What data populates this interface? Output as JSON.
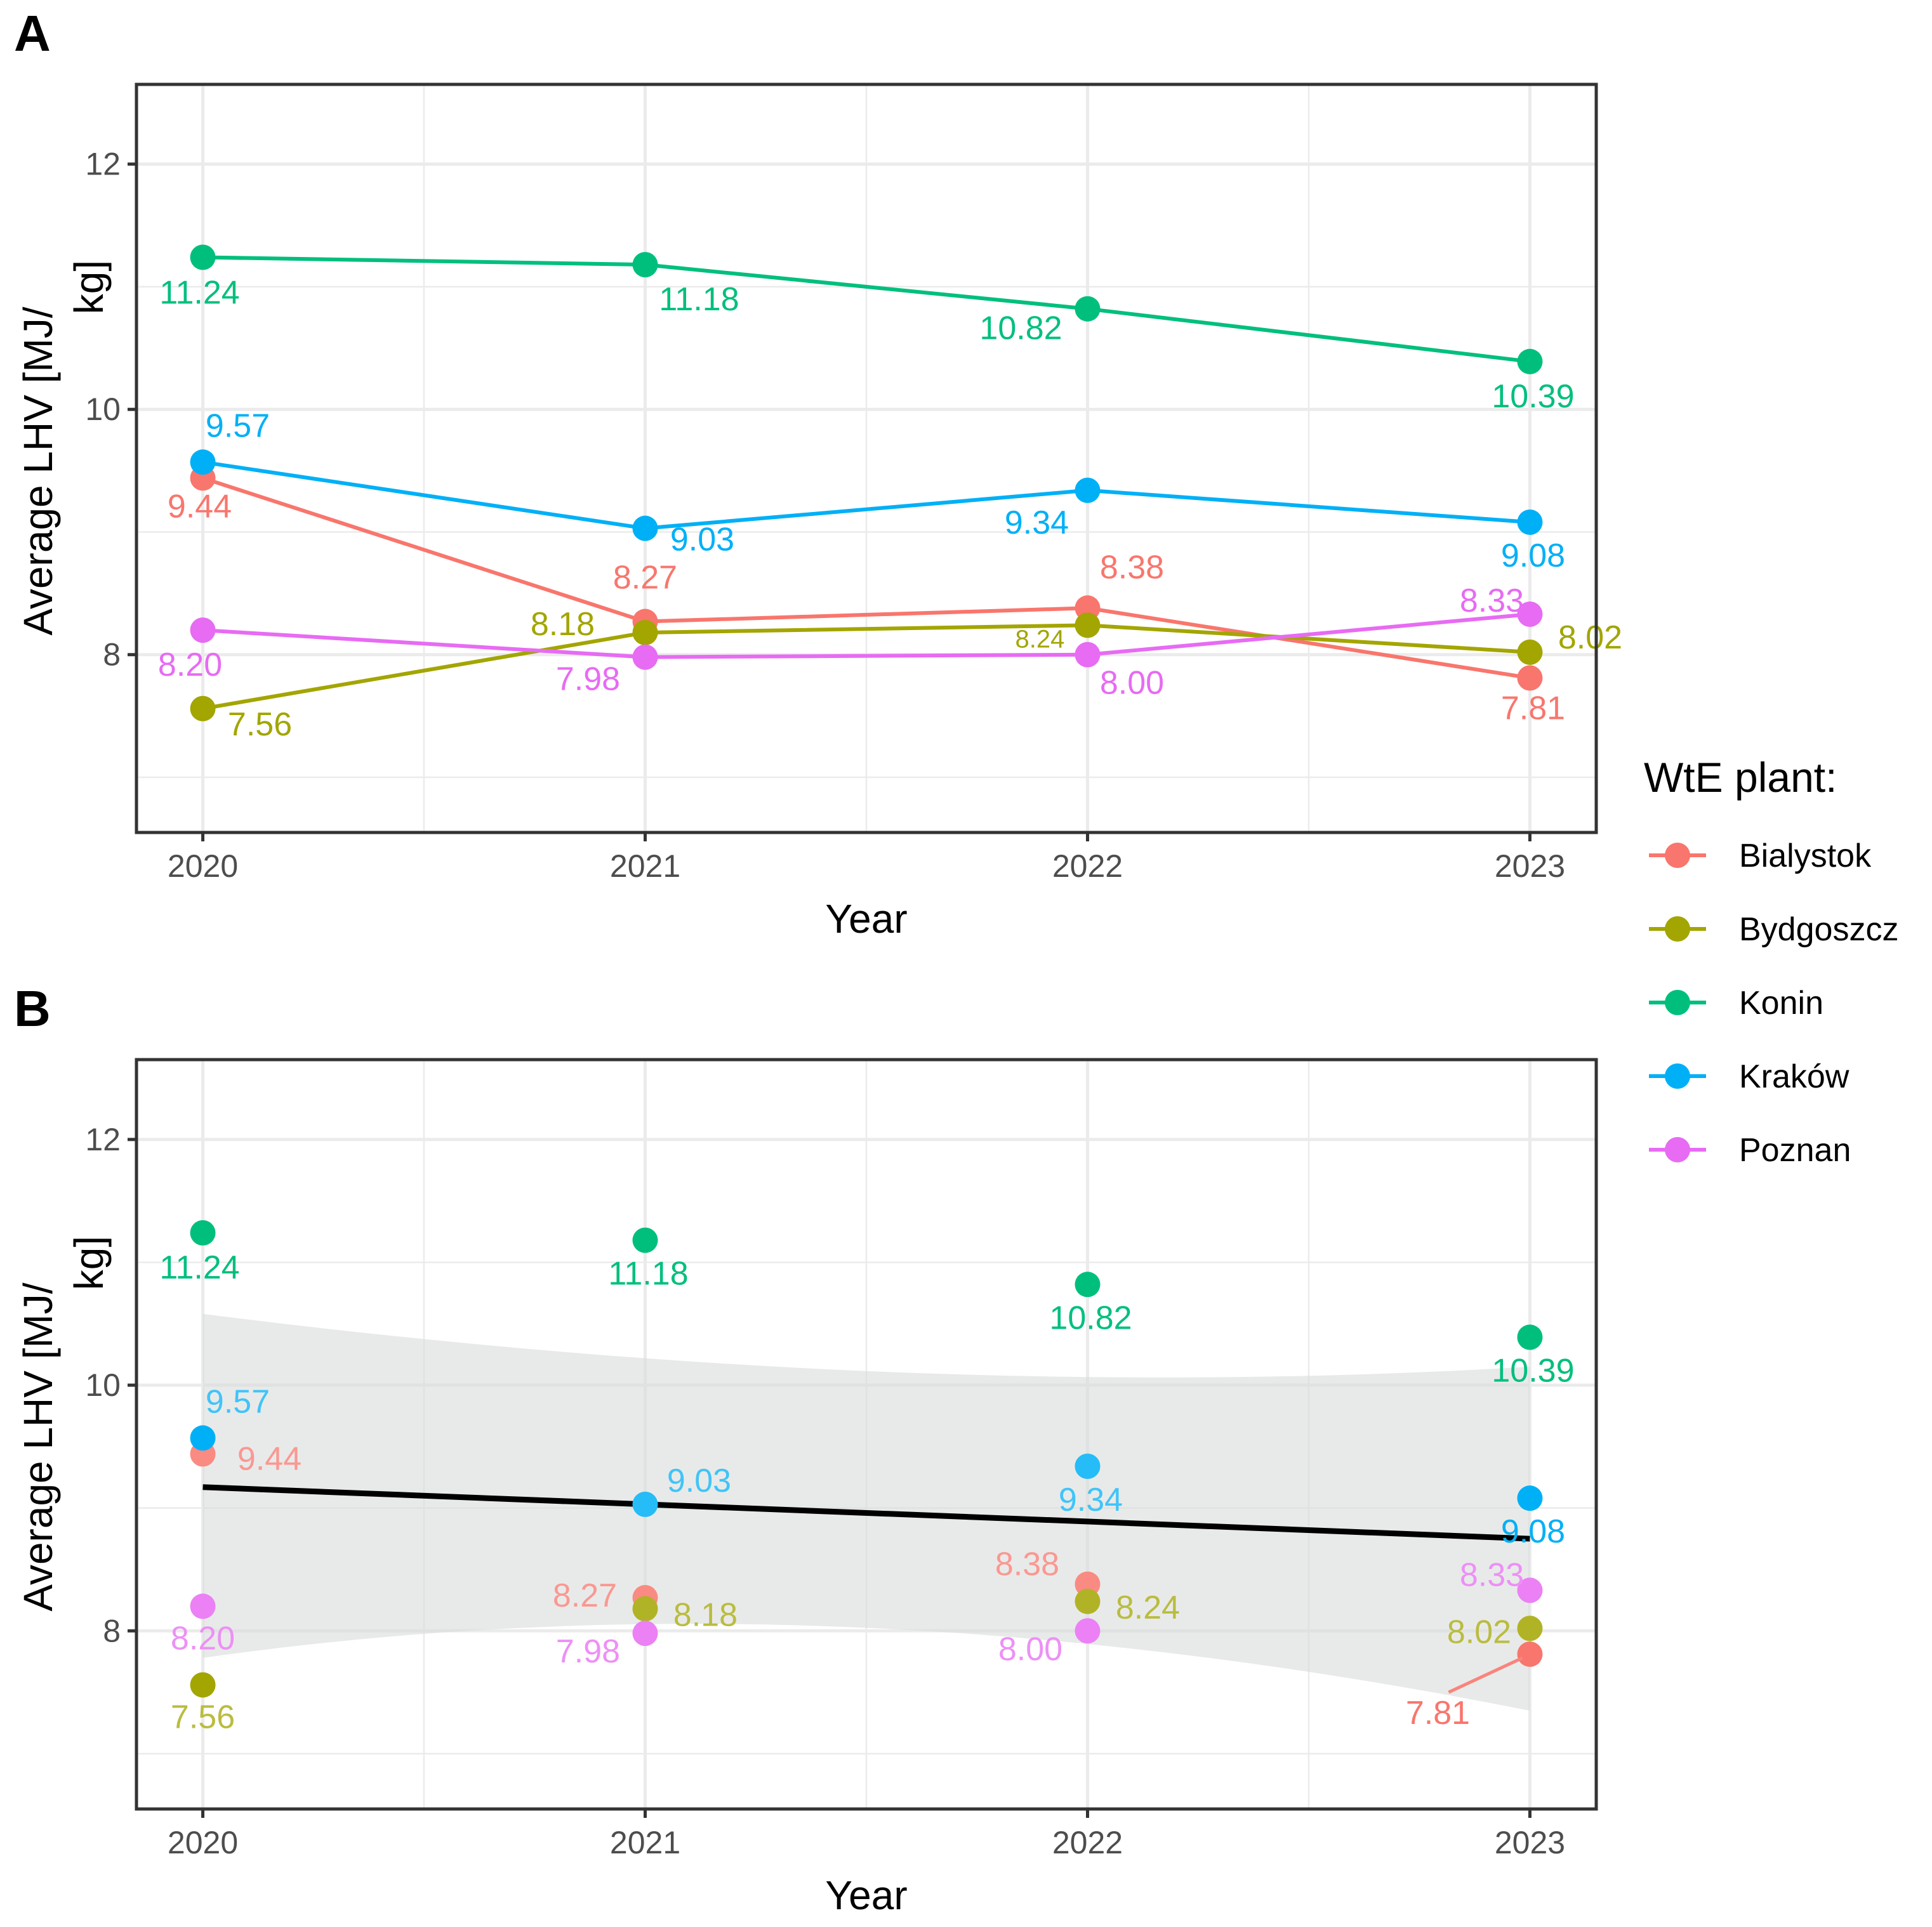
{
  "legend": {
    "title": "WtE plant:",
    "entries": [
      {
        "name": "Bialystok",
        "color": "#F8766D"
      },
      {
        "name": "Bydgoszcz",
        "color": "#A3A500"
      },
      {
        "name": "Konin",
        "color": "#00BF7D"
      },
      {
        "name": "Kraków",
        "color": "#00B0F6"
      },
      {
        "name": "Poznan",
        "color": "#E76BF3"
      }
    ]
  },
  "chart_data": [
    {
      "type": "line",
      "panel_label": "A",
      "xlabel": "Year",
      "ylabel": "Average LHV [MJ/kg]",
      "ylabel_lines": [
        "Average LHV [MJ/",
        "kg]"
      ],
      "x": [
        2020,
        2021,
        2022,
        2023
      ],
      "x_tick_labels": [
        "2020",
        "2021",
        "2022",
        "2023"
      ],
      "y_ticks": [
        8,
        10,
        12
      ],
      "y_tick_labels": [
        "8",
        "10",
        "12"
      ],
      "ylim": [
        6.55,
        12.65
      ],
      "xlim": [
        2019.85,
        2023.15
      ],
      "grid": true,
      "series": [
        {
          "name": "Bialystok",
          "color": "#F8766D",
          "values": [
            9.44,
            8.27,
            8.38,
            7.81
          ],
          "labels": [
            "9.44",
            "8.27",
            "8.38",
            "7.81"
          ]
        },
        {
          "name": "Bydgoszcz",
          "color": "#A3A500",
          "values": [
            7.56,
            8.18,
            8.24,
            8.02
          ],
          "labels": [
            "7.56",
            "8.18",
            "8.24",
            "8.02"
          ]
        },
        {
          "name": "Konin",
          "color": "#00BF7D",
          "values": [
            11.24,
            11.18,
            10.82,
            10.39
          ],
          "labels": [
            "11.24",
            "11.18",
            "10.82",
            "10.39"
          ]
        },
        {
          "name": "Kraków",
          "color": "#00B0F6",
          "values": [
            9.57,
            9.03,
            9.34,
            9.08
          ],
          "labels": [
            "9.57",
            "9.03",
            "9.34",
            "9.08"
          ]
        },
        {
          "name": "Poznan",
          "color": "#E76BF3",
          "values": [
            8.2,
            7.98,
            8.0,
            8.33
          ],
          "labels": [
            "8.20",
            "7.98",
            "8.00",
            "8.33"
          ]
        }
      ]
    },
    {
      "type": "scatter",
      "panel_label": "B",
      "xlabel": "Year",
      "ylabel": "Average LHV [MJ/kg]",
      "ylabel_lines": [
        "Average LHV [MJ/",
        "kg]"
      ],
      "x": [
        2020,
        2021,
        2022,
        2023
      ],
      "x_tick_labels": [
        "2020",
        "2021",
        "2022",
        "2023"
      ],
      "y_ticks": [
        8,
        10,
        12
      ],
      "y_tick_labels": [
        "8",
        "10",
        "12"
      ],
      "ylim": [
        6.55,
        12.65
      ],
      "xlim": [
        2019.85,
        2023.15
      ],
      "grid": true,
      "series": [
        {
          "name": "Bialystok",
          "color": "#F8766D",
          "values": [
            9.44,
            8.27,
            8.38,
            7.81
          ],
          "labels": [
            "9.44",
            "8.27",
            "8.38",
            "7.81"
          ]
        },
        {
          "name": "Bydgoszcz",
          "color": "#A3A500",
          "values": [
            7.56,
            8.18,
            8.24,
            8.02
          ],
          "labels": [
            "7.56",
            "8.18",
            "8.24",
            "8.02"
          ]
        },
        {
          "name": "Konin",
          "color": "#00BF7D",
          "values": [
            11.24,
            11.18,
            10.82,
            10.39
          ],
          "labels": [
            "11.24",
            "11.18",
            "10.82",
            "10.39"
          ]
        },
        {
          "name": "Kraków",
          "color": "#00B0F6",
          "values": [
            9.57,
            9.03,
            9.34,
            9.08
          ],
          "labels": [
            "9.57",
            "9.03",
            "9.34",
            "9.08"
          ]
        },
        {
          "name": "Poznan",
          "color": "#E76BF3",
          "values": [
            8.2,
            7.98,
            8.0,
            8.33
          ],
          "labels": [
            "8.20",
            "7.98",
            "8.00",
            "8.33"
          ]
        }
      ],
      "trend": {
        "type": "linear",
        "color": "#000000",
        "band_color": "#D9DCDA",
        "x": [
          2020,
          2023
        ],
        "y": [
          9.17,
          8.75
        ],
        "band_upper": [
          10.58,
          10.15
        ],
        "band_lower": [
          7.78,
          7.35
        ]
      }
    }
  ]
}
